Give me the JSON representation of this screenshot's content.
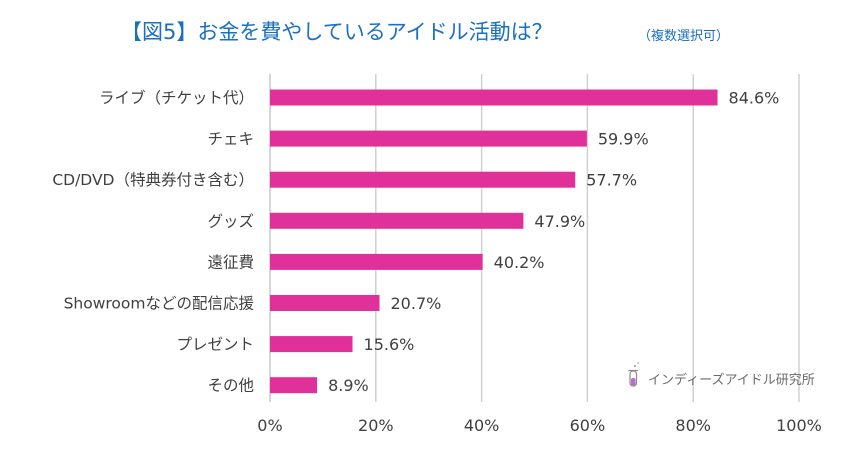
{
  "chart_data": {
    "type": "bar",
    "orientation": "horizontal",
    "title": "【図5】お金を費やしているアイドル活動は？",
    "title_note": "（複数選択可）",
    "categories": [
      "ライブ（チケット代）",
      "チェキ",
      "CD/DVD（特典券付き含む）",
      "グッズ",
      "遠征費",
      "Showroomなどの配信応援",
      "プレゼント",
      "その他"
    ],
    "values": [
      84.6,
      59.9,
      57.7,
      47.9,
      40.2,
      20.7,
      15.6,
      8.9
    ],
    "value_labels": [
      "84.6%",
      "59.9%",
      "57.7%",
      "47.9%",
      "40.2%",
      "20.7%",
      "15.6%",
      "8.9%"
    ],
    "xlim": [
      0,
      100
    ],
    "xticks": [
      0,
      20,
      40,
      60,
      80,
      100
    ],
    "xtick_labels": [
      "0%",
      "20%",
      "40%",
      "60%",
      "80%",
      "100%"
    ],
    "grid": true,
    "xlabel": "",
    "ylabel": "",
    "bar_color": "#e0309a"
  },
  "watermark": {
    "text": "インディーズアイドル研究所",
    "icon": "test-tube-icon"
  }
}
